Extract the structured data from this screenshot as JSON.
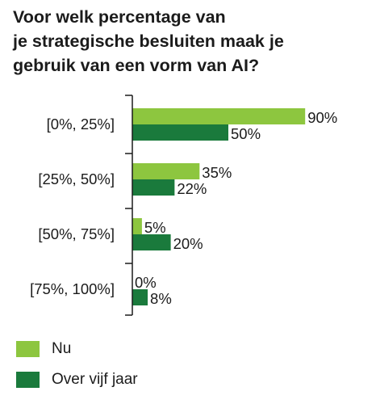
{
  "chart_data": {
    "type": "bar",
    "orientation": "horizontal",
    "title_lines": [
      "Voor welk percentage van",
      "je strategische besluiten maak je",
      "gebruik van een vorm van AI?"
    ],
    "categories": [
      "[0%, 25%]",
      "[25%, 50%]",
      "[50%, 75%]",
      "[75%, 100%]"
    ],
    "series": [
      {
        "name": "Nu",
        "values": [
          90,
          35,
          5,
          0
        ],
        "labels": [
          "90%",
          "35%",
          "5%",
          "0%"
        ],
        "color": "#8dc63f"
      },
      {
        "name": "Over vijf jaar",
        "values": [
          50,
          22,
          20,
          8
        ],
        "labels": [
          "50%",
          "22%",
          "20%",
          "8%"
        ],
        "color": "#1a7a3c"
      }
    ],
    "xlim": [
      0,
      100
    ],
    "grid": false,
    "legend_position": "bottom-left"
  }
}
